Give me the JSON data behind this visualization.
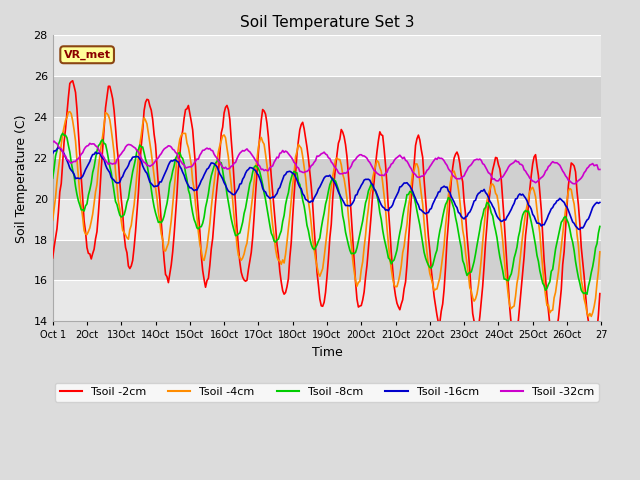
{
  "title": "Soil Temperature Set 3",
  "xlabel": "Time",
  "ylabel": "Soil Temperature (C)",
  "ylim": [
    14,
    28
  ],
  "xlim": [
    0,
    384
  ],
  "bg_color": "#dcdcdc",
  "band_colors": [
    "#e8e8e8",
    "#d0d0d0"
  ],
  "annotation_text": "VR_met",
  "annotation_box_color": "#ffff99",
  "annotation_border_color": "#8B4513",
  "line_colors": {
    "2cm": "#ff0000",
    "4cm": "#ff8c00",
    "8cm": "#00cc00",
    "16cm": "#0000cc",
    "32cm": "#cc00cc"
  },
  "legend_labels": [
    "Tsoil -2cm",
    "Tsoil -4cm",
    "Tsoil -8cm",
    "Tsoil -16cm",
    "Tsoil -32cm"
  ],
  "xtick_positions": [
    0,
    24,
    48,
    72,
    96,
    120,
    144,
    168,
    192,
    216,
    240,
    264,
    288,
    312,
    336,
    360,
    384
  ],
  "xtick_labels": [
    "Oct 1",
    "2Oct",
    "13Oct",
    "14Oct",
    "15Oct",
    "16Oct",
    "17Oct",
    "18Oct",
    "19Oct",
    "20Oct",
    "21Oct",
    "22Oct",
    "23Oct",
    "24Oct",
    "25Oct",
    "26Oct",
    "27"
  ],
  "yticks": [
    14,
    16,
    18,
    20,
    22,
    24,
    26,
    28
  ]
}
